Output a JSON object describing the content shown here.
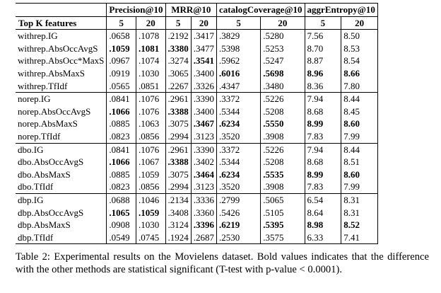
{
  "header": {
    "metrics": [
      "Precision@10",
      "MRR@10",
      "catalogCoverage@10",
      "aggrEntropy@10"
    ],
    "features_label": "Top K features",
    "k_values": [
      "5",
      "20"
    ]
  },
  "groups": [
    {
      "rows": [
        {
          "name": "withrep.IG",
          "cells": [
            ".0658",
            ".1078",
            ".2192",
            ".3417",
            ".3829",
            ".5280",
            "7.56",
            "8.50"
          ],
          "bold": [
            false,
            false,
            false,
            false,
            false,
            false,
            false,
            false
          ]
        },
        {
          "name": "withrep.AbsOccAvgS",
          "cells": [
            ".1059",
            ".1081",
            ".3380",
            ".3477",
            ".5398",
            ".5253",
            "8.70",
            "8.53"
          ],
          "bold": [
            true,
            true,
            true,
            false,
            false,
            false,
            false,
            false
          ]
        },
        {
          "name": "withrep.AbsOcc*MaxS",
          "cells": [
            ".0967",
            ".1074",
            ".3274",
            ".3541",
            ".5962",
            ".5247",
            "8.87",
            "8.54"
          ],
          "bold": [
            false,
            false,
            false,
            true,
            false,
            false,
            false,
            false
          ]
        },
        {
          "name": "withrep.AbsMaxS",
          "cells": [
            ".0919",
            ".1030",
            ".3065",
            ".3400",
            ".6016",
            ".5698",
            "8.96",
            "8.66"
          ],
          "bold": [
            false,
            false,
            false,
            false,
            true,
            true,
            true,
            true
          ]
        },
        {
          "name": "withrep.TfIdf",
          "cells": [
            ".0565",
            ".0851",
            ".2267",
            ".3326",
            ".4347",
            ".3480",
            "8.36",
            "7.80"
          ],
          "bold": [
            false,
            false,
            false,
            false,
            false,
            false,
            false,
            false
          ]
        }
      ]
    },
    {
      "rows": [
        {
          "name": "norep.IG",
          "cells": [
            ".0841",
            ".1076",
            ".2961",
            ".3390",
            ".3372",
            ".5226",
            "7.94",
            "8.44"
          ],
          "bold": [
            false,
            false,
            false,
            false,
            false,
            false,
            false,
            false
          ]
        },
        {
          "name": "norep.AbsOccAvgS",
          "cells": [
            ".1066",
            ".1076",
            ".3388",
            ".3400",
            ".5344",
            ".5208",
            "8.68",
            "8.45"
          ],
          "bold": [
            true,
            false,
            true,
            false,
            false,
            false,
            false,
            false
          ]
        },
        {
          "name": "norep.AbsMaxS",
          "cells": [
            ".0885",
            ".1063",
            ".3075",
            ".3467",
            ".6234",
            ".5550",
            "8.99",
            "8.60"
          ],
          "bold": [
            false,
            false,
            false,
            true,
            true,
            true,
            true,
            true
          ]
        },
        {
          "name": "norep.TfIdf",
          "cells": [
            ".0823",
            ".0856",
            ".2994",
            ".3123",
            ".3520",
            ".3908",
            "7.83",
            "7.99"
          ],
          "bold": [
            false,
            false,
            false,
            false,
            false,
            false,
            false,
            false
          ]
        }
      ]
    },
    {
      "rows": [
        {
          "name": "dbo.IG",
          "cells": [
            ".0841",
            ".1076",
            ".2961",
            ".3390",
            ".3372",
            ".5226",
            "7.94",
            "8.44"
          ],
          "bold": [
            false,
            false,
            false,
            false,
            false,
            false,
            false,
            false
          ]
        },
        {
          "name": "dbo.AbsOccAvgS",
          "cells": [
            ".1066",
            ".1067",
            ".3388",
            ".3402",
            ".5344",
            ".5208",
            "8.68",
            "8.51"
          ],
          "bold": [
            true,
            false,
            true,
            false,
            false,
            false,
            false,
            false
          ]
        },
        {
          "name": "dbo.AbsMaxS",
          "cells": [
            ".0885",
            ".1059",
            ".3075",
            ".3464",
            ".6234",
            ".5535",
            "8.99",
            "8.60"
          ],
          "bold": [
            false,
            false,
            false,
            true,
            true,
            true,
            true,
            true
          ]
        },
        {
          "name": "dbo.TfIdf",
          "cells": [
            ".0823",
            ".0856",
            ".2994",
            ".3123",
            ".3520",
            ".3908",
            "7.83",
            "7.99"
          ],
          "bold": [
            false,
            false,
            false,
            false,
            false,
            false,
            false,
            false
          ]
        }
      ]
    },
    {
      "rows": [
        {
          "name": "dbp.IG",
          "cells": [
            ".0688",
            ".1046",
            ".2134",
            ".3336",
            ".2799",
            ".5065",
            "6.54",
            "8.31"
          ],
          "bold": [
            false,
            false,
            false,
            false,
            false,
            false,
            false,
            false
          ]
        },
        {
          "name": "dbp.AbsOccAvgS",
          "cells": [
            ".1065",
            ".1059",
            ".3408",
            ".3360",
            ".5426",
            ".5105",
            "8.64",
            "8.31"
          ],
          "bold": [
            true,
            true,
            false,
            false,
            false,
            false,
            false,
            false
          ]
        },
        {
          "name": "dbp.AbsMaxS",
          "cells": [
            ".0908",
            ".1030",
            ".3124",
            ".3396",
            ".6219",
            ".5395",
            "8.98",
            "8.52"
          ],
          "bold": [
            false,
            false,
            false,
            true,
            true,
            true,
            true,
            true
          ]
        },
        {
          "name": "dbp.TfIdf",
          "cells": [
            ".0549",
            ".0745",
            ".1924",
            ".2687",
            ".2530",
            ".3575",
            "6.33",
            "7.41"
          ],
          "bold": [
            false,
            false,
            false,
            false,
            false,
            false,
            false,
            false
          ]
        }
      ]
    }
  ],
  "caption": "Table 2: Experimental results on the Movielens dataset. Bold values indicates that the difference with the other methods are statistical significant (T-test with p-value < 0.0001)."
}
